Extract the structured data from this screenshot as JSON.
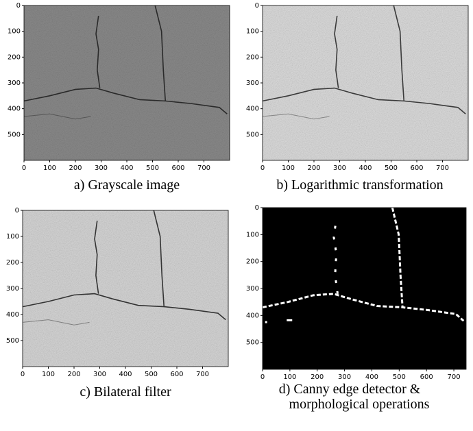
{
  "panels": [
    {
      "caption": [
        "a) Grayscale image"
      ],
      "xlim": [
        0,
        800
      ],
      "ylim": [
        0,
        600
      ],
      "xticks": [
        0,
        100,
        200,
        300,
        400,
        500,
        600,
        700
      ],
      "yticks": [
        0,
        100,
        200,
        300,
        400,
        500
      ]
    },
    {
      "caption": [
        "b) Logarithmic transformation"
      ],
      "xlim": [
        0,
        800
      ],
      "ylim": [
        0,
        600
      ],
      "xticks": [
        0,
        100,
        200,
        300,
        400,
        500,
        600,
        700
      ],
      "yticks": [
        0,
        100,
        200,
        300,
        400,
        500
      ]
    },
    {
      "caption": [
        "c)  Bilateral filter"
      ],
      "xlim": [
        0,
        800
      ],
      "ylim": [
        0,
        600
      ],
      "xticks": [
        0,
        100,
        200,
        300,
        400,
        500,
        600,
        700
      ],
      "yticks": [
        0,
        100,
        200,
        300,
        400,
        500
      ]
    },
    {
      "caption": [
        "d) Canny edge detector &",
        "morphological operations"
      ],
      "xlim": [
        0,
        745
      ],
      "ylim": [
        0,
        600
      ],
      "xticks": [
        0,
        100,
        200,
        300,
        400,
        500,
        600,
        700
      ],
      "yticks": [
        0,
        100,
        200,
        300,
        400,
        500
      ]
    }
  ]
}
